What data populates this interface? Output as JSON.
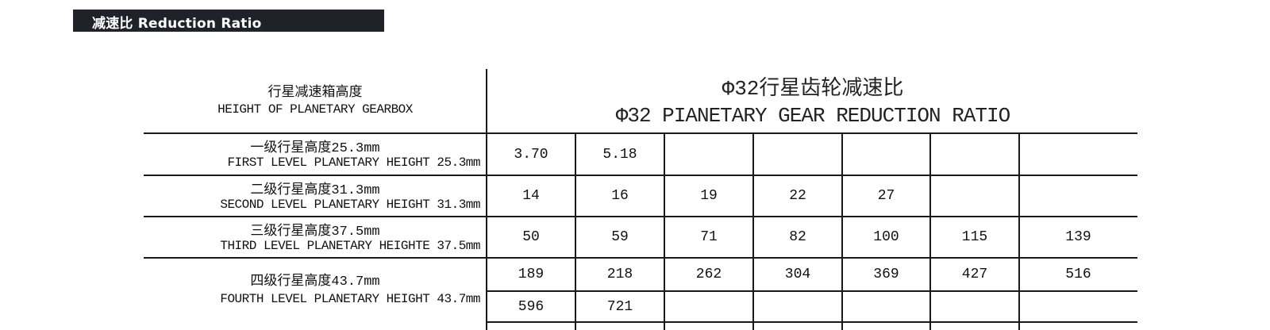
{
  "section_header": "减速比 Reduction Ratio",
  "table": {
    "row_header": {
      "cn": "行星减速箱高度",
      "en": "HEIGHT OF PLANETARY GEARBOX"
    },
    "title_cn": "Φ32行星齿轮减速比",
    "title_en": "Φ32 PIANETARY GEAR REDUCTION RATIO",
    "rows": [
      {
        "cn": "一级行星高度25.3mm",
        "en": "FIRST LEVEL PLANETARY HEIGHT 25.3mm",
        "values": [
          [
            "3.70",
            "5.18",
            "",
            "",
            "",
            "",
            ""
          ]
        ]
      },
      {
        "cn": "二级行星高度31.3mm",
        "en": "SECOND LEVEL PLANETARY HEIGHT 31.3mm",
        "values": [
          [
            "14",
            "16",
            "19",
            "22",
            "27",
            "",
            ""
          ]
        ]
      },
      {
        "cn": "三级行星高度37.5mm",
        "en": "THIRD LEVEL PLANETARY HEIGHTE 37.5mm",
        "values": [
          [
            "50",
            "59",
            "71",
            "82",
            "100",
            "115",
            "139"
          ]
        ]
      },
      {
        "cn": "四级行星高度43.7mm",
        "en": "FOURTH  LEVEL PLANETARY HEIGHT 43.7mm",
        "values": [
          [
            "189",
            "218",
            "262",
            "304",
            "369",
            "427",
            "516"
          ],
          [
            "596",
            "721",
            "",
            "",
            "",
            "",
            ""
          ]
        ]
      }
    ]
  }
}
